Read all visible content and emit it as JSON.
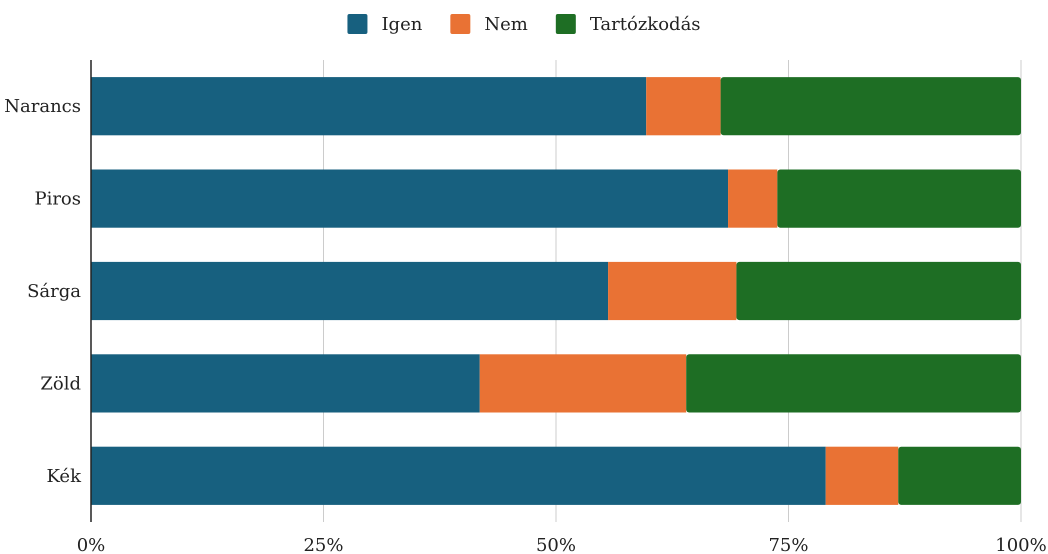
{
  "chart_data": {
    "type": "bar",
    "orientation": "horizontal",
    "stacked": "percent",
    "categories": [
      "Narancs",
      "Piros",
      "Sárga",
      "Zöld",
      "Kék"
    ],
    "series": [
      {
        "name": "Igen",
        "color": "#17607f",
        "values": [
          59.7,
          68.5,
          55.6,
          41.8,
          79.0
        ]
      },
      {
        "name": "Nem",
        "color": "#e97234",
        "values": [
          8.0,
          5.3,
          13.8,
          22.2,
          7.8
        ]
      },
      {
        "name": "Tartózkodás",
        "color": "#1e6e24",
        "values": [
          32.3,
          26.2,
          30.6,
          36.0,
          13.2
        ]
      }
    ],
    "xticks": [
      "0%",
      "25%",
      "50%",
      "75%",
      "100%"
    ],
    "xlim": [
      0,
      100
    ],
    "grid": "vertical",
    "legend": "top-center"
  }
}
